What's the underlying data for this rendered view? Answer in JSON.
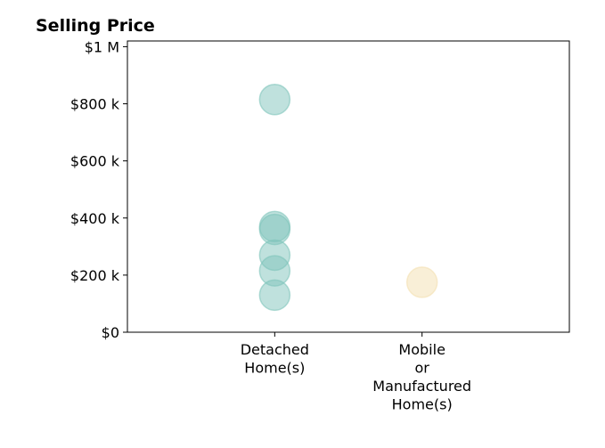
{
  "chart_data": {
    "type": "scatter",
    "title": "Selling Price",
    "categories": [
      [
        "Detached",
        "Home(s)"
      ],
      [
        "Mobile",
        "or",
        "Manufactured",
        "Home(s)"
      ]
    ],
    "y_ticks": [
      {
        "value": 0,
        "label": "$0"
      },
      {
        "value": 200000,
        "label": "$200 k"
      },
      {
        "value": 400000,
        "label": "$400 k"
      },
      {
        "value": 600000,
        "label": "$600 k"
      },
      {
        "value": 800000,
        "label": "$800 k"
      },
      {
        "value": 1000000,
        "label": "$1 M"
      }
    ],
    "ylim": [
      0,
      1020000
    ],
    "xlim": [
      0,
      3
    ],
    "grid": false,
    "series": [
      {
        "category_index": 0,
        "color": "#7fc4bb",
        "values": [
          815000,
          370000,
          360000,
          270000,
          215000,
          130000
        ]
      },
      {
        "category_index": 1,
        "color": "#f3dfb0",
        "values": [
          175000
        ]
      }
    ]
  }
}
